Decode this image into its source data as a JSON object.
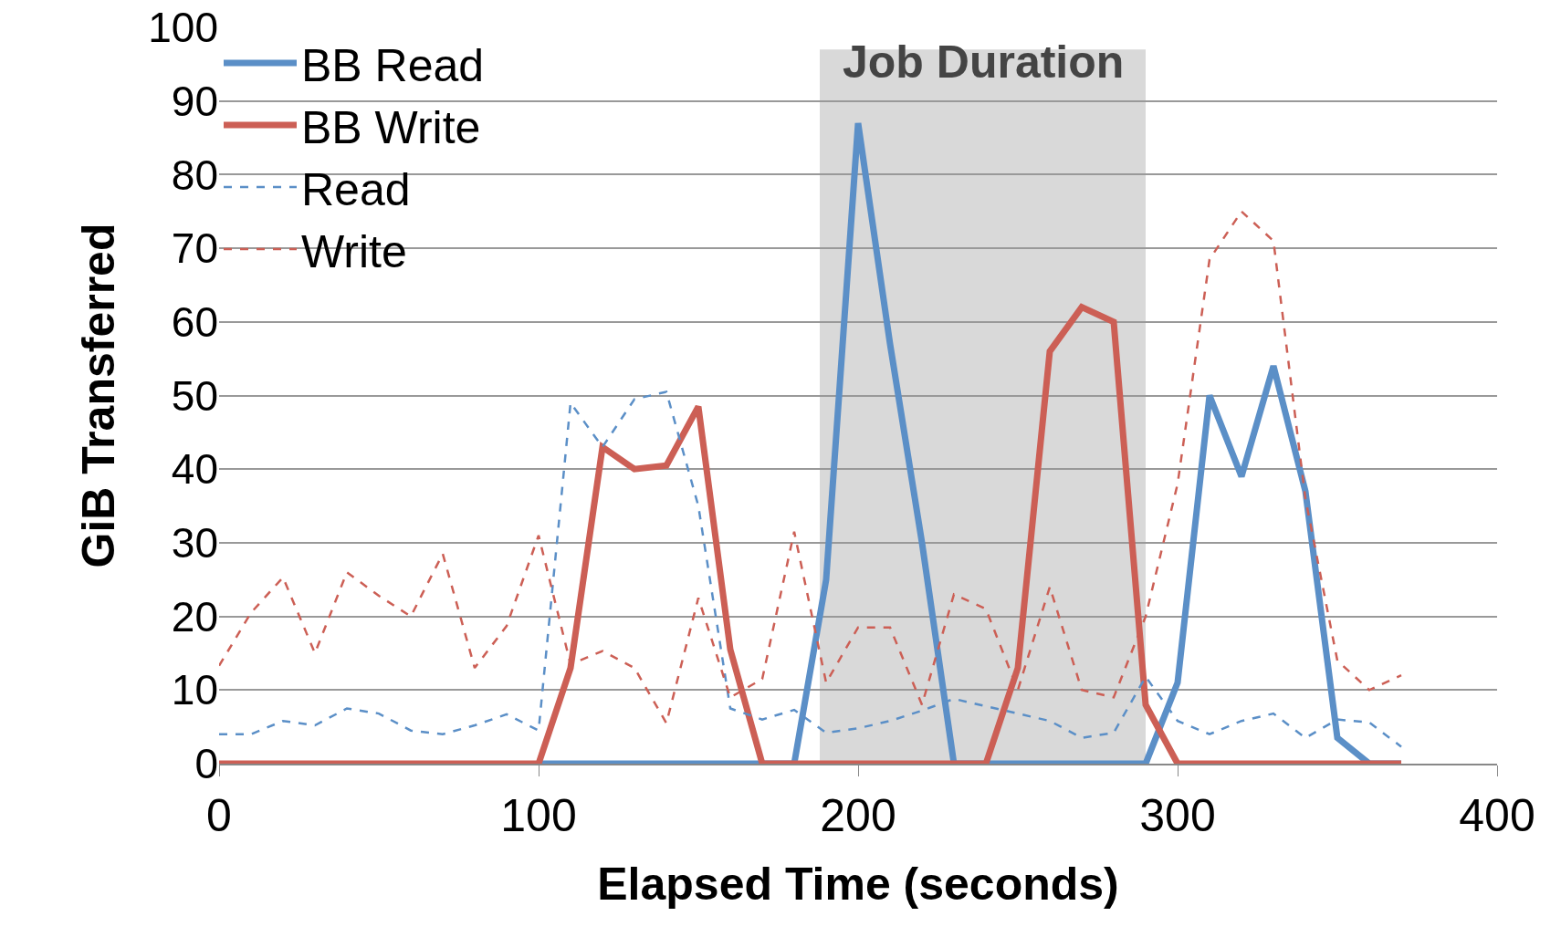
{
  "chart_data": {
    "type": "line",
    "xlabel": "Elapsed Time (seconds)",
    "ylabel": "GiB Transferred",
    "x": [
      0,
      10,
      20,
      30,
      40,
      50,
      60,
      70,
      80,
      90,
      100,
      110,
      120,
      130,
      140,
      150,
      160,
      170,
      180,
      190,
      200,
      210,
      220,
      230,
      240,
      250,
      260,
      270,
      280,
      290,
      300,
      310,
      320,
      330,
      340,
      350,
      360,
      370
    ],
    "series": [
      {
        "name": "BB Read",
        "color": "#5b8fc7",
        "line_style": "solid",
        "values": [
          null,
          null,
          null,
          null,
          null,
          null,
          null,
          null,
          null,
          null,
          0,
          0,
          0,
          0,
          0,
          0,
          0,
          0,
          0,
          25,
          87,
          57,
          30,
          0,
          0,
          0,
          0,
          0,
          0,
          0,
          11,
          50,
          39,
          54,
          37,
          3.5,
          0,
          0
        ]
      },
      {
        "name": "BB Write",
        "color": "#cc5f55",
        "line_style": "solid",
        "values": [
          0,
          0,
          0,
          0,
          0,
          0,
          0,
          0,
          0,
          0,
          0,
          13,
          43,
          40,
          40.5,
          48.5,
          15.5,
          0,
          0,
          0,
          0,
          0,
          0,
          0,
          0,
          13,
          56,
          62,
          60,
          8,
          0,
          0,
          0,
          0,
          0,
          0,
          0,
          0
        ]
      },
      {
        "name": "Read",
        "color": "#5b8fc7",
        "line_style": "dashed",
        "values": [
          4,
          4,
          5.8,
          5.2,
          7.5,
          6.8,
          4.5,
          4,
          5.2,
          6.7,
          4.5,
          49,
          43,
          49.5,
          50.5,
          35,
          7.5,
          6,
          7.3,
          4.2,
          4.8,
          5.8,
          7.2,
          8.8,
          7.8,
          6.8,
          5.8,
          3.5,
          4.2,
          11.8,
          5.8,
          4,
          5.8,
          6.8,
          3.5,
          6,
          5.6,
          2.3
        ]
      },
      {
        "name": "Write",
        "color": "#cc5f55",
        "line_style": "dashed",
        "values": [
          13.3,
          20.5,
          25.3,
          15,
          26,
          22.8,
          20,
          28.5,
          13,
          18.7,
          31,
          13.5,
          15.3,
          13,
          5.5,
          22.5,
          9,
          11.5,
          31.5,
          11,
          18.5,
          18.5,
          8,
          23,
          21,
          10,
          24,
          10,
          9,
          20,
          38,
          68.5,
          75,
          71,
          36,
          14,
          10,
          12
        ]
      }
    ],
    "bands": [
      {
        "axis": "x",
        "from": 188,
        "to": 290,
        "label": "Job Duration",
        "color": "#d9d9d9"
      }
    ],
    "xlim": [
      0,
      400
    ],
    "xticks": [
      0,
      100,
      200,
      300,
      400
    ],
    "ylim": [
      0,
      100
    ],
    "yticks": [
      0,
      10,
      20,
      30,
      40,
      50,
      60,
      70,
      80,
      90,
      100
    ],
    "grid": "y",
    "legend": "top left",
    "marker": "none"
  }
}
